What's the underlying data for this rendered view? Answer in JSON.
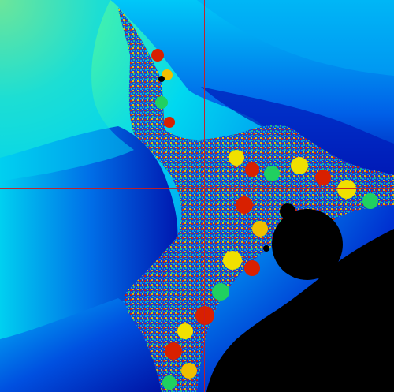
{
  "viewer": {
    "colors": {
      "crosshair": "#d21a1a",
      "set_interior": "#000000",
      "outer_glow": "#e8ff2a",
      "outer_cyan": "#00e8f0",
      "deep_blue": "#0010b0",
      "band_red": "#d82000",
      "band_yellow": "#f0e000",
      "band_green": "#20d060"
    }
  }
}
